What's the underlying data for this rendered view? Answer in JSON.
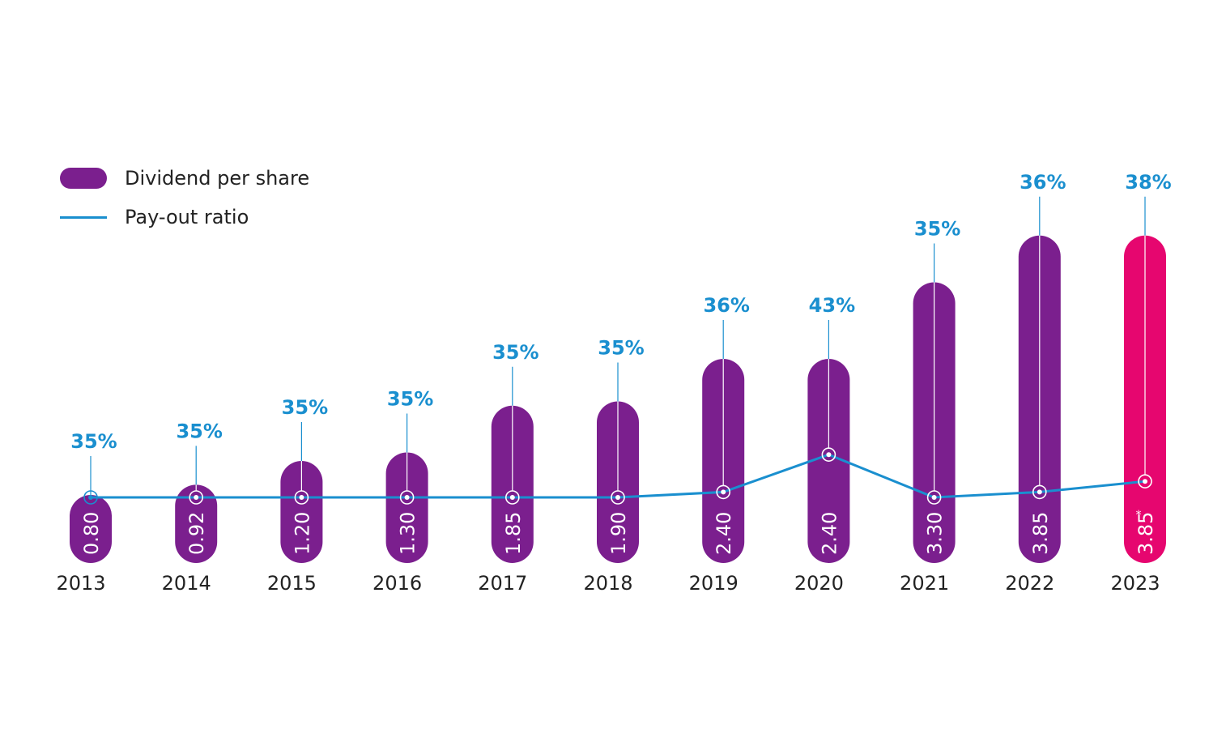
{
  "legend": {
    "bar_label": "Dividend per share",
    "line_label": "Pay-out ratio"
  },
  "colors": {
    "bar": "#7b1f8e",
    "bar_highlight": "#e6066f",
    "line": "#1a8fcf"
  },
  "chart_data": {
    "type": "bar",
    "categories": [
      "2013",
      "2014",
      "2015",
      "2016",
      "2017",
      "2018",
      "2019",
      "2020",
      "2021",
      "2022",
      "2023"
    ],
    "series": [
      {
        "name": "Dividend per share",
        "type": "bar",
        "values": [
          0.8,
          0.92,
          1.2,
          1.3,
          1.85,
          1.9,
          2.4,
          2.4,
          3.3,
          3.85,
          3.85
        ],
        "labels": [
          "0.80",
          "0.92",
          "1.20",
          "1.30",
          "1.85",
          "1.90",
          "2.40",
          "2.40",
          "3.30",
          "3.85",
          "3.85"
        ]
      },
      {
        "name": "Pay-out ratio",
        "type": "line",
        "values": [
          35,
          35,
          35,
          35,
          35,
          35,
          36,
          43,
          35,
          36,
          38
        ],
        "labels": [
          "35%",
          "35%",
          "35%",
          "35%",
          "35%",
          "35%",
          "36%",
          "43%",
          "35%",
          "36%",
          "38%"
        ]
      }
    ],
    "highlight_index": 10,
    "highlight_note": "*",
    "legend_position": "top-left",
    "grid": false
  }
}
